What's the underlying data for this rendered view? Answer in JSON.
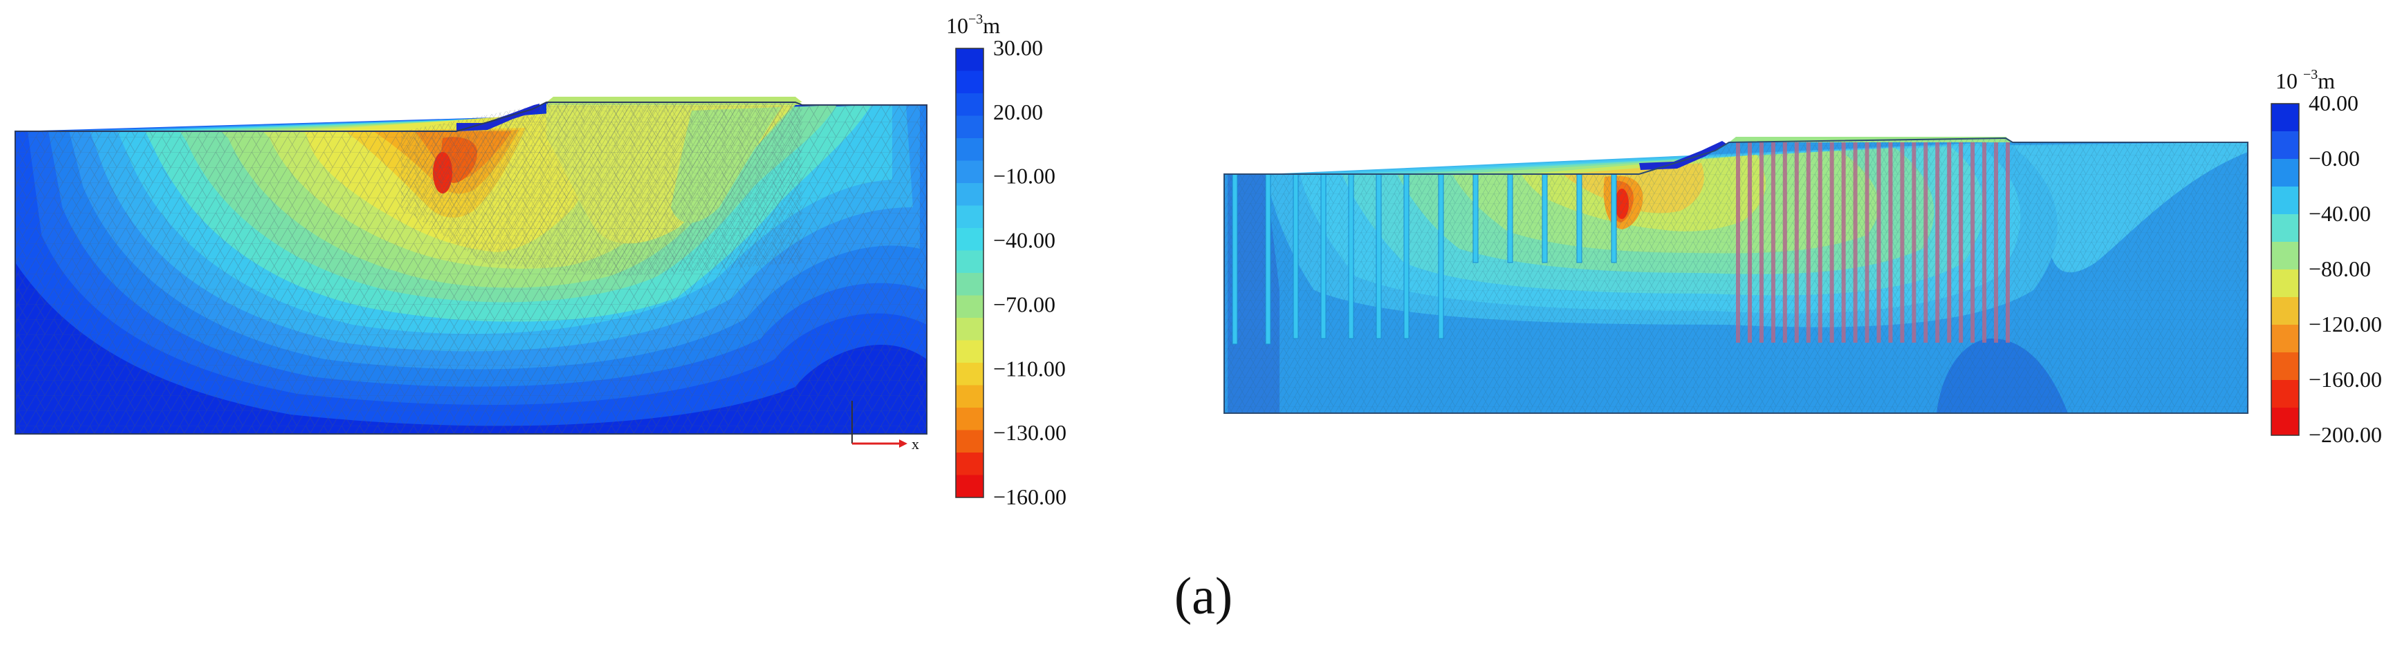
{
  "figure": {
    "caption": "(a)"
  },
  "left_panel": {
    "legend": {
      "unit_prefix": "10",
      "unit_exponent": "−3",
      "unit_suffix": "m",
      "labels": [
        "30.00",
        "20.00",
        "−10.00",
        "−40.00",
        "−70.00",
        "−110.00",
        "−130.00",
        "−160.00"
      ],
      "colors": [
        "#0a2ee0",
        "#0c3ef0",
        "#1254f0",
        "#1a68f0",
        "#2080f0",
        "#2c96f2",
        "#34b0f2",
        "#3cc8f0",
        "#40d8ea",
        "#58e0d0",
        "#7ae0a8",
        "#9ee484",
        "#c4e868",
        "#e6e84c",
        "#f2d030",
        "#f4b020",
        "#f48e18",
        "#f06010",
        "#ee2a10",
        "#e81010"
      ]
    },
    "axis": {
      "x_label": "x"
    }
  },
  "right_panel": {
    "legend": {
      "unit_prefix": "10",
      "unit_exponent": "−3",
      "unit_suffix": "m",
      "labels": [
        "40.00",
        "−0.00",
        "−40.00",
        "−80.00",
        "−120.00",
        "−160.00",
        "−200.00"
      ],
      "colors": [
        "#0a2ee0",
        "#1a58ee",
        "#2290ee",
        "#36c4f0",
        "#5ee0d0",
        "#9ee68a",
        "#dce850",
        "#f0c030",
        "#f49020",
        "#f06014",
        "#ee2a10",
        "#e81010"
      ]
    }
  },
  "colors": {
    "deep_blue": "#0a36e6",
    "pile_purple": "#b0688c",
    "wall_blue": "#1a2ad0"
  }
}
